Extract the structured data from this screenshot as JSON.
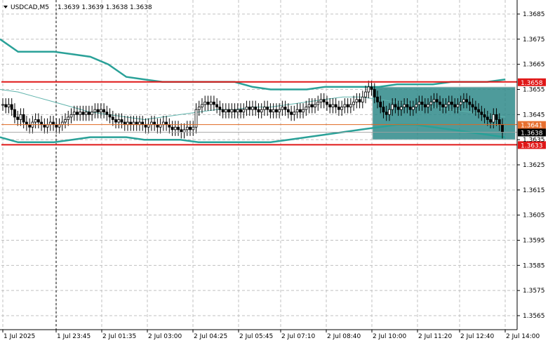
{
  "header": {
    "symbol": "USDCAD,M5",
    "ohlc": "1.3639 1.3639 1.3638 1.3638",
    "menu_icon": "triangle-down-icon"
  },
  "colors": {
    "background": "#ffffff",
    "grid": "#c0c0c0",
    "candle": "#000000",
    "bollinger": "#2aa198",
    "middle_band": "#5fb3ac",
    "resistance": "#e01818",
    "support": "#e01818",
    "mid_level": "#e06820",
    "current_price": "#000000",
    "zone_fill": "#2f8a8a",
    "zone_border": "#d8d8d8"
  },
  "y_axis": {
    "min": 1.356,
    "max": 1.369,
    "ticks": [
      "1.3685",
      "1.3675",
      "1.3665",
      "1.3655",
      "1.3645",
      "1.3635",
      "1.3625",
      "1.3615",
      "1.3605",
      "1.3595",
      "1.3585",
      "1.3575",
      "1.3565"
    ]
  },
  "x_axis": {
    "labels": [
      "1 Jul 2025",
      "1 Jul 23:45",
      "2 Jul 01:35",
      "2 Jul 03:00",
      "2 Jul 04:25",
      "2 Jul 05:45",
      "2 Jul 07:10",
      "2 Jul 08:40",
      "2 Jul 10:00",
      "2 Jul 11:20",
      "2 Jul 12:40",
      "2 Jul 14:00"
    ],
    "separator_label": "1 Jul 23:45"
  },
  "levels": {
    "resistance": {
      "price": 1.3658,
      "label": "1.3658"
    },
    "mid": {
      "price": 1.3641,
      "label": "1.3641"
    },
    "current": {
      "price": 1.3638,
      "label": "1.3638"
    },
    "support": {
      "price": 1.3633,
      "label": "1.3633"
    }
  },
  "zone": {
    "start_bar": 125,
    "end_bar": 170,
    "top_price": 1.3656,
    "bottom_price": 1.3635
  },
  "chart_data": {
    "type": "candlestick",
    "symbol": "USDCAD",
    "timeframe": "M5",
    "ylim": [
      1.356,
      1.369
    ],
    "close_series": [
      1.3649,
      1.3648,
      1.3649,
      1.3647,
      1.3644,
      1.3643,
      1.3645,
      1.3642,
      1.3641,
      1.364,
      1.3642,
      1.3643,
      1.3642,
      1.3641,
      1.364,
      1.3641,
      1.3642,
      1.3641,
      1.364,
      1.3641,
      1.3642,
      1.3643,
      1.3644,
      1.3645,
      1.3646,
      1.3645,
      1.3646,
      1.3645,
      1.3646,
      1.3645,
      1.3646,
      1.3647,
      1.3646,
      1.3647,
      1.3646,
      1.3645,
      1.3644,
      1.3643,
      1.3642,
      1.3643,
      1.3642,
      1.3641,
      1.3642,
      1.3641,
      1.3642,
      1.3641,
      1.3642,
      1.3641,
      1.364,
      1.3641,
      1.3642,
      1.3641,
      1.364,
      1.3641,
      1.3642,
      1.3641,
      1.364,
      1.3639,
      1.364,
      1.3639,
      1.3638,
      1.3639,
      1.364,
      1.3639,
      1.364,
      1.3647,
      1.3648,
      1.3649,
      1.365,
      1.3649,
      1.365,
      1.3649,
      1.3648,
      1.3647,
      1.3646,
      1.3647,
      1.3646,
      1.3647,
      1.3646,
      1.3647,
      1.3646,
      1.3647,
      1.3648,
      1.3647,
      1.3648,
      1.3647,
      1.3646,
      1.3647,
      1.3648,
      1.3647,
      1.3646,
      1.3647,
      1.3646,
      1.3647,
      1.3648,
      1.3647,
      1.3646,
      1.3645,
      1.3646,
      1.3647,
      1.3646,
      1.3647,
      1.3648,
      1.3649,
      1.3648,
      1.3649,
      1.365,
      1.3651,
      1.365,
      1.3649,
      1.3648,
      1.3649,
      1.3648,
      1.3647,
      1.3648,
      1.3649,
      1.3648,
      1.3649,
      1.365,
      1.3651,
      1.365,
      1.3652,
      1.3654,
      1.3656,
      1.3655,
      1.3652,
      1.365,
      1.3648,
      1.3646,
      1.3645,
      1.3647,
      1.3649,
      1.3648,
      1.3647,
      1.3648,
      1.3649,
      1.3648,
      1.3647,
      1.3648,
      1.3649,
      1.365,
      1.3649,
      1.3648,
      1.3649,
      1.365,
      1.3651,
      1.365,
      1.3649,
      1.3648,
      1.3649,
      1.365,
      1.3649,
      1.3648,
      1.3649,
      1.365,
      1.3651,
      1.365,
      1.3649,
      1.3648,
      1.3647,
      1.3646,
      1.3645,
      1.3644,
      1.3643,
      1.3642,
      1.3645,
      1.3643,
      1.3641,
      1.3638
    ],
    "bollinger_upper": [
      1.3675,
      1.367,
      1.367,
      1.367,
      1.3669,
      1.3668,
      1.3665,
      1.366,
      1.3659,
      1.3658,
      1.3658,
      1.3658,
      1.3658,
      1.3658,
      1.3656,
      1.3655,
      1.3655,
      1.3655,
      1.3656,
      1.3656,
      1.3656,
      1.3656,
      1.3657,
      1.3657,
      1.3657,
      1.3658,
      1.3658,
      1.3658,
      1.3659
    ],
    "bollinger_middle": [
      1.3655,
      1.3654,
      1.3652,
      1.365,
      1.3648,
      1.3646,
      1.3645,
      1.3644,
      1.3643,
      1.3644,
      1.3645,
      1.3646,
      1.3647,
      1.3647,
      1.3648,
      1.3648,
      1.3649,
      1.365,
      1.3651,
      1.3652,
      1.3652,
      1.3651,
      1.365,
      1.3649,
      1.3648,
      1.3647,
      1.3646,
      1.3645,
      1.3644
    ],
    "bollinger_lower": [
      1.3636,
      1.3634,
      1.3634,
      1.3634,
      1.3635,
      1.3636,
      1.3636,
      1.3636,
      1.3635,
      1.3635,
      1.3635,
      1.3634,
      1.3634,
      1.3634,
      1.3634,
      1.3634,
      1.3635,
      1.3636,
      1.3637,
      1.3638,
      1.3639,
      1.364,
      1.3641,
      1.3641,
      1.364,
      1.3639,
      1.3638,
      1.3637,
      1.3636
    ]
  }
}
